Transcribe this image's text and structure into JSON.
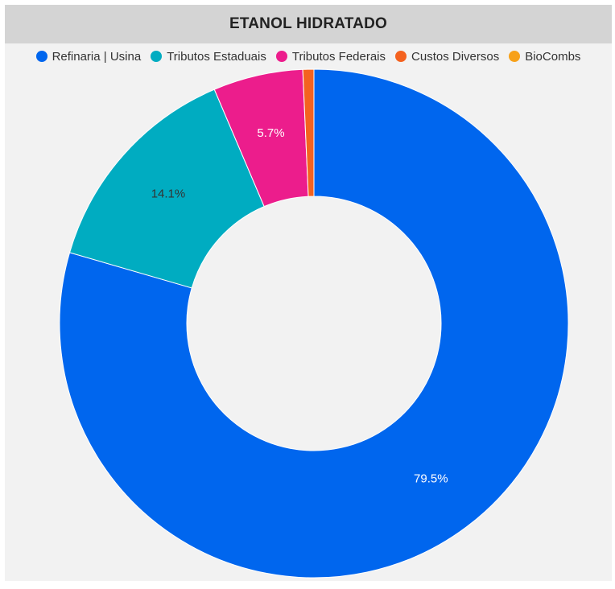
{
  "chart_data": {
    "type": "pie",
    "style": "donut",
    "title": "ETANOL HIDRATADO",
    "legend_position": "top",
    "series": [
      {
        "name": "Refinaria | Usina",
        "value": 79.5,
        "color": "#0066ee",
        "label": "79.5%",
        "label_color": "#ffffff"
      },
      {
        "name": "Tributos Estaduais",
        "value": 14.1,
        "color": "#00acc1",
        "label": "14.1%",
        "label_color": "#333333"
      },
      {
        "name": "Tributos Federais",
        "value": 5.7,
        "color": "#ec1d8c",
        "label": "5.7%",
        "label_color": "#ffffff"
      },
      {
        "name": "Custos Diversos",
        "value": 0.7,
        "color": "#f4621f",
        "label": "",
        "label_color": "#ffffff"
      },
      {
        "name": "BioCombs",
        "value": 0.0,
        "color": "#f7a11a",
        "label": "",
        "label_color": "#ffffff"
      }
    ]
  }
}
